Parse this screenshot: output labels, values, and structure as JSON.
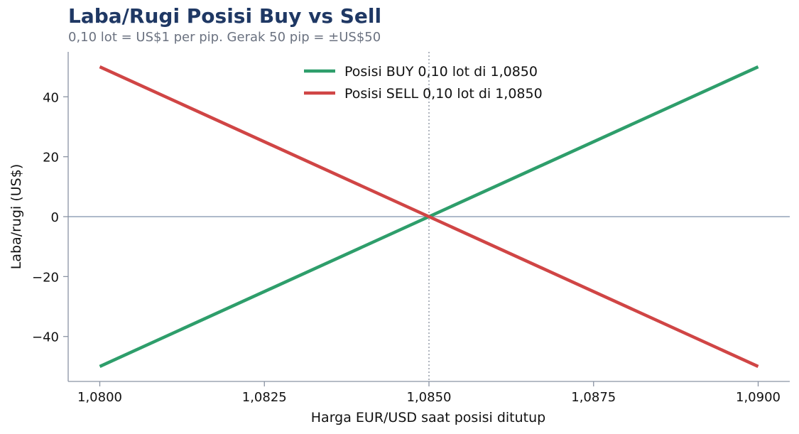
{
  "chart_data": {
    "type": "line",
    "title": "Laba/Rugi Posisi Buy vs Sell",
    "subtitle": "0,10 lot = US$1 per pip. Gerak 50 pip = ±US$50",
    "xlabel": "Harga EUR/USD saat posisi ditutup",
    "ylabel": "Laba/rugi (US$)",
    "x": [
      1.08,
      1.09
    ],
    "xlim": [
      1.07952,
      1.09048
    ],
    "ylim": [
      -55,
      55
    ],
    "x_ticks": [
      1.08,
      1.0825,
      1.085,
      1.0875,
      1.09
    ],
    "x_tick_labels": [
      "1,0800",
      "1,0825",
      "1,0850",
      "1,0875",
      "1,0900"
    ],
    "y_ticks": [
      40,
      20,
      0,
      -20,
      -40
    ],
    "y_tick_labels": [
      "40",
      "20",
      "0",
      "−20",
      "−40"
    ],
    "entry_price": 1.085,
    "zero_line": 0,
    "grid": false,
    "legend_position": "top-center",
    "series": [
      {
        "name": "Posisi BUY 0,10 lot di 1,0850",
        "color": "#2e9e6b",
        "values": [
          -50,
          50
        ]
      },
      {
        "name": "Posisi SELL 0,10 lot di 1,0850",
        "color": "#d04545",
        "values": [
          50,
          -50
        ]
      }
    ],
    "colors": {
      "title": "#1f3864",
      "subtitle": "#6b7280",
      "zero_line": "#94a3b8",
      "vline": "#9ca3af",
      "axis": "#8a93a3"
    }
  }
}
